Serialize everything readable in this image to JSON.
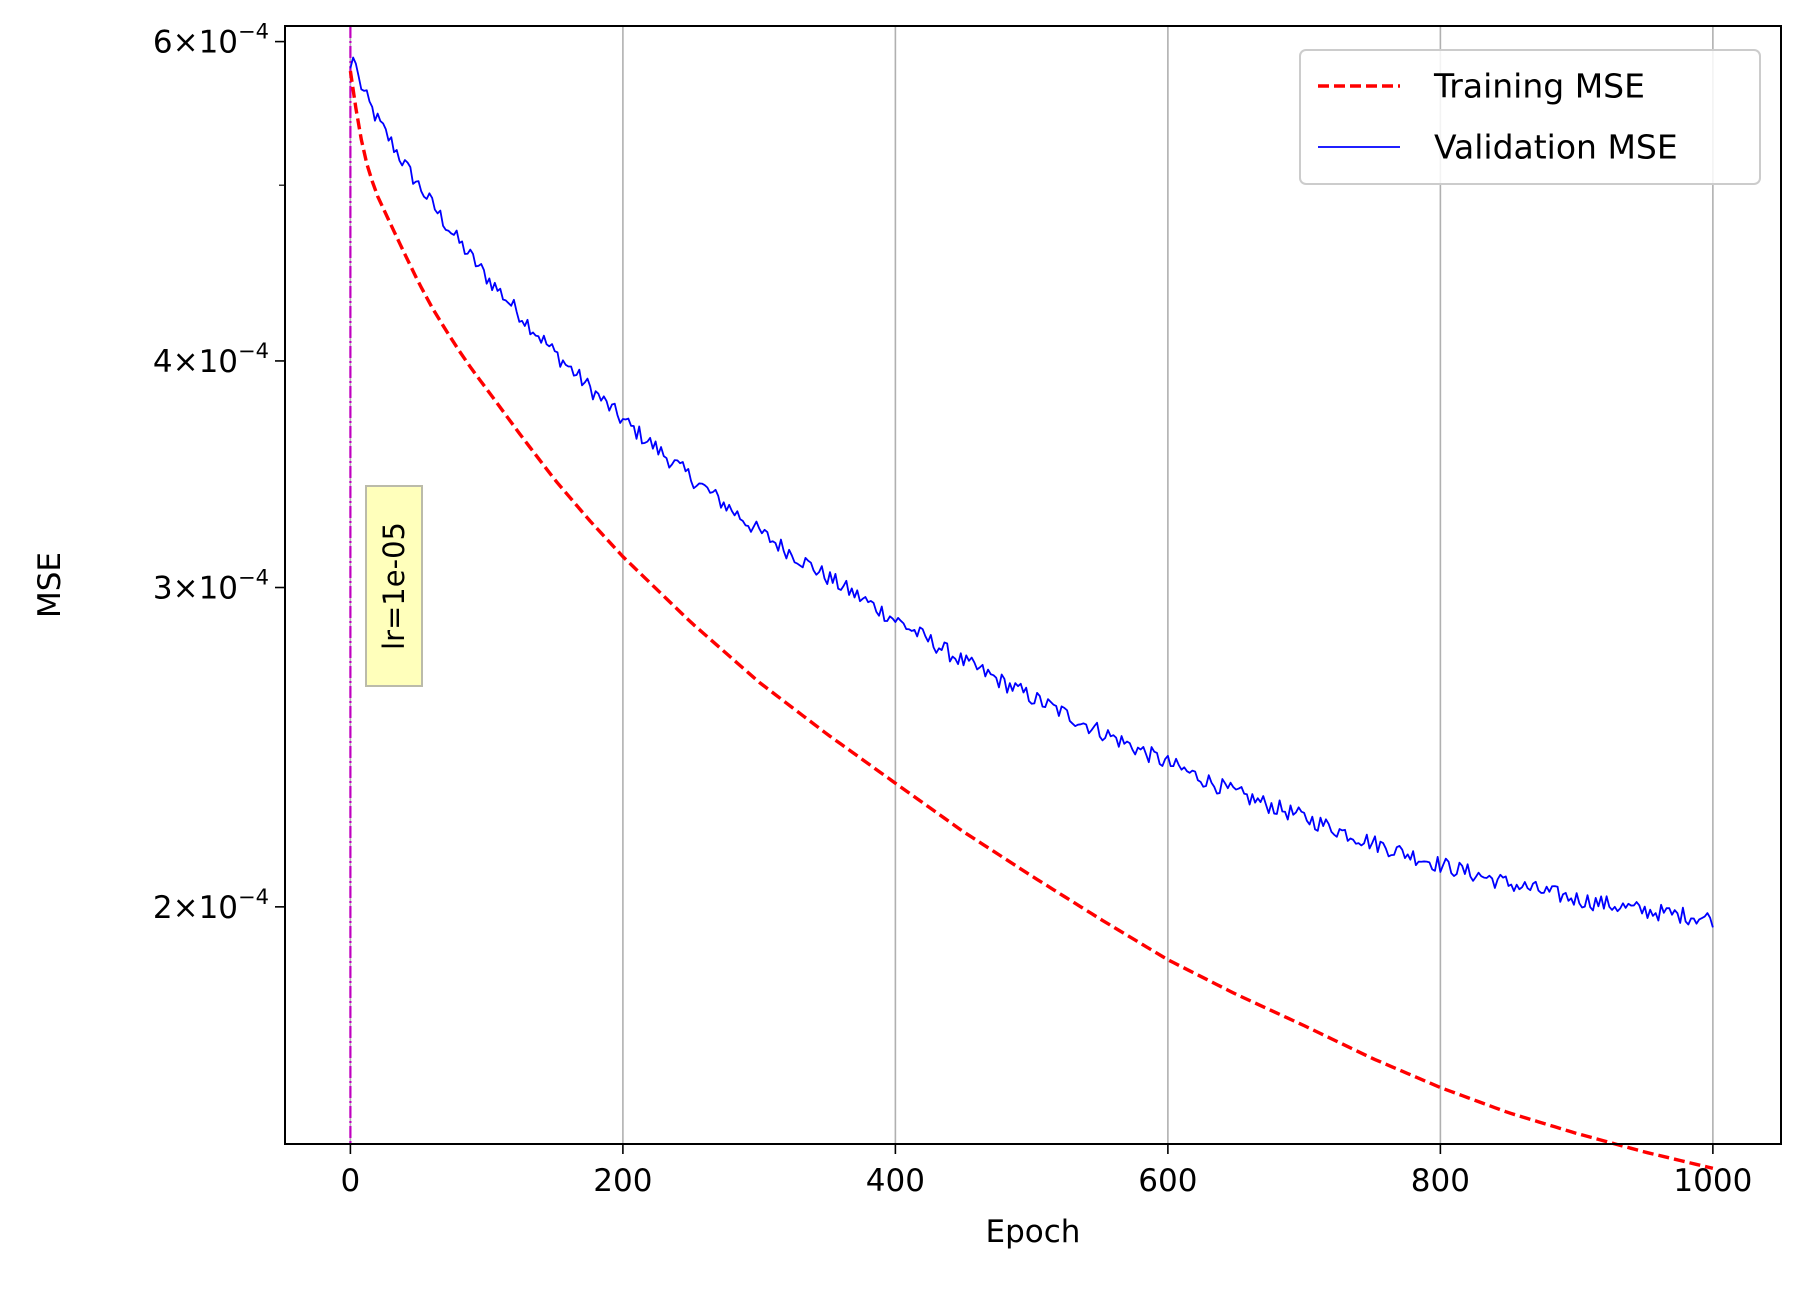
{
  "chart_data": {
    "type": "line",
    "xlabel": "Epoch",
    "ylabel": "MSE",
    "xlim": [
      -48,
      1050
    ],
    "ylim": [
      0.000148,
      0.000612
    ],
    "y_scale": "log",
    "grid": "x-only",
    "x_ticks": [
      0,
      200,
      400,
      600,
      800,
      1000
    ],
    "y_ticks": [
      {
        "value": 0.0002,
        "mantissa": "2",
        "exponent": "−4"
      },
      {
        "value": 0.0003,
        "mantissa": "3",
        "exponent": "−4"
      },
      {
        "value": 0.0004,
        "mantissa": "4",
        "exponent": "−4"
      },
      {
        "value": 0.0006,
        "mantissa": "6",
        "exponent": "−4"
      }
    ],
    "y_minor_ticks": [
      0.0005
    ],
    "times_sign": "×",
    "tick_base": "10",
    "legend_position": "upper-right",
    "series": [
      {
        "name": "Training MSE",
        "color": "#ff0000",
        "style": "dashed",
        "x": [
          0,
          5,
          10,
          15,
          20,
          30,
          40,
          50,
          60,
          70,
          80,
          90,
          100,
          125,
          150,
          175,
          200,
          250,
          300,
          350,
          400,
          450,
          500,
          550,
          600,
          650,
          700,
          750,
          800,
          850,
          900,
          950,
          1000
        ],
        "y": [
          0.000578,
          0.000545,
          0.00052,
          0.000505,
          0.000493,
          0.000475,
          0.000458,
          0.000442,
          0.000428,
          0.000416,
          0.000405,
          0.000395,
          0.000386,
          0.000364,
          0.000344,
          0.000327,
          0.000312,
          0.000287,
          0.000266,
          0.000249,
          0.000234,
          0.00022,
          0.000208,
          0.000197,
          0.000187,
          0.000179,
          0.000172,
          0.000165,
          0.000159,
          0.000154,
          0.00015,
          0.0001465,
          0.0001435
        ]
      },
      {
        "name": "Validation MSE",
        "color": "#0000ff",
        "style": "solid",
        "x": [
          0,
          3,
          5,
          10,
          15,
          20,
          30,
          40,
          50,
          60,
          70,
          80,
          90,
          100,
          125,
          150,
          175,
          200,
          250,
          300,
          350,
          400,
          450,
          500,
          550,
          600,
          650,
          700,
          750,
          800,
          850,
          900,
          950,
          1000
        ],
        "y": [
          0.00058,
          0.000592,
          0.000575,
          0.000562,
          0.000552,
          0.000543,
          0.000528,
          0.000513,
          0.0005,
          0.000488,
          0.000476,
          0.000465,
          0.000455,
          0.000445,
          0.000424,
          0.000404,
          0.000387,
          0.000371,
          0.000345,
          0.000322,
          0.000304,
          0.000288,
          0.000273,
          0.000261,
          0.00025,
          0.00024,
          0.000231,
          0.000224,
          0.000217,
          0.000211,
          0.000206,
          0.000202,
          0.000199,
          0.000197
        ]
      }
    ],
    "vline": {
      "x": 0,
      "color": "#c000c0"
    },
    "annotation": {
      "text": "lr=1e-05"
    }
  }
}
